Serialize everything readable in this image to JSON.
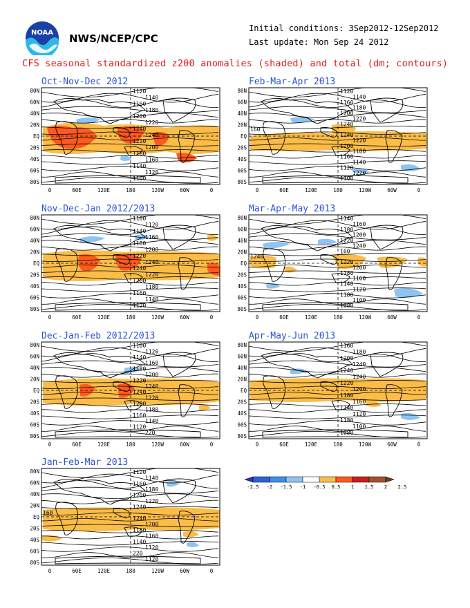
{
  "header": {
    "logo_text": "NOAA",
    "agency": "NWS/NCEP/CPC",
    "initial_conditions": "Initial conditions: 3Sep2012-12Sep2012",
    "last_update": "Last update: Mon Sep 24 2012",
    "title": "CFS seasonal standardized z200 anomalies (shaded) and total (dm; contours)"
  },
  "axes": {
    "lat_labels": [
      "80N",
      "60N",
      "40N",
      "20N",
      "EQ",
      "20S",
      "40S",
      "60S",
      "80S"
    ],
    "lon_labels": [
      "0",
      "60E",
      "120E",
      "180",
      "120W",
      "60W",
      "0"
    ]
  },
  "colorbar": {
    "ticks": [
      "-2.5",
      "-2",
      "-1.5",
      "-1",
      "-0.5",
      "0.5",
      "1",
      "1.5",
      "2",
      "2.5"
    ],
    "colors": [
      "#3a2fb3",
      "#2d5fd8",
      "#3d8fe6",
      "#8fc4f2",
      "#ffffff",
      "#fbbd48",
      "#ff5a1e",
      "#cc1d1d",
      "#a0522d",
      "#6b3a28"
    ]
  },
  "panels": [
    {
      "id": "p1",
      "title": "Oct-Nov-Dec 2012",
      "contours": [
        "1120",
        "1140",
        "1160",
        "1180",
        "1200",
        "1220",
        "1240",
        "1240",
        "1220",
        "1200",
        "1180",
        "1160",
        "1140",
        "1120",
        "1100"
      ]
    },
    {
      "id": "p2",
      "title": "Feb-Mar-Apr 2013",
      "contours": [
        "1120",
        "1140",
        "1160",
        "1180",
        "1200",
        "1220",
        "1240",
        "160",
        "1240",
        "1220",
        "1200",
        "1180",
        "1160",
        "1140",
        "1120",
        "1220",
        "1100"
      ]
    },
    {
      "id": "p3",
      "title": "Nov-Dec-Jan 2012/2013",
      "contours": [
        "1100",
        "1120",
        "1140",
        "1160",
        "1180",
        "1200",
        "1220",
        "1240",
        "1240",
        "1220",
        "1200",
        "1180",
        "1160",
        "1140",
        "1120"
      ]
    },
    {
      "id": "p4",
      "title": "Mar-Apr-May 2013",
      "contours": [
        "1140",
        "1160",
        "1180",
        "1200",
        "1220",
        "1240",
        "160",
        "1240",
        "1220",
        "1200",
        "1180",
        "1160",
        "1140",
        "1120",
        "1180",
        "1100",
        "1080"
      ]
    },
    {
      "id": "p5",
      "title": "Dec-Jan-Feb 2012/2013",
      "contours": [
        "1100",
        "1120",
        "1140",
        "1160",
        "1180",
        "1200",
        "1220",
        "1240",
        "1240",
        "1220",
        "1200",
        "1180",
        "1160",
        "1140",
        "1120",
        "220"
      ]
    },
    {
      "id": "p6",
      "title": "Apr-May-Jun 2013",
      "contours": [
        "1160",
        "1180",
        "1200",
        "1240",
        "1240",
        "1240",
        "1220",
        "1200",
        "1180",
        "1160",
        "1140",
        "1120",
        "1180",
        "1100",
        "1080"
      ]
    },
    {
      "id": "p7",
      "title": "Jan-Feb-Mar 2013",
      "contours": [
        "1120",
        "1140",
        "1160",
        "1180",
        "1200",
        "1220",
        "1240",
        "160",
        "1240",
        "1200",
        "1180",
        "1160",
        "1140",
        "1120",
        "220",
        "1120"
      ]
    }
  ],
  "chart_data": [
    {
      "type": "heatmap",
      "title": "Oct-Nov-Dec 2012",
      "anomaly_summary": "strong positive anomalies (1 to 1.5) across tropics from Africa to Pacific; weak negative near 20N"
    },
    {
      "type": "heatmap",
      "title": "Feb-Mar-Apr 2013",
      "anomaly_summary": "positive anomalies (0.5 to 1) in tropical band; negative patches in northern and southern midlatitudes"
    },
    {
      "type": "heatmap",
      "title": "Nov-Dec-Jan 2012/2013",
      "anomaly_summary": "strong positive anomalies (1 to 1.5) over Indian Ocean and western Pacific"
    },
    {
      "type": "heatmap",
      "title": "Mar-Apr-May 2013",
      "anomaly_summary": "scattered weak positive anomalies in tropics; negative patches in midlatitudes"
    },
    {
      "type": "heatmap",
      "title": "Dec-Jan-Feb 2012/2013",
      "anomaly_summary": "positive tropical band with cores of 1 over Africa and central Pacific"
    },
    {
      "type": "heatmap",
      "title": "Apr-May-Jun 2013",
      "anomaly_summary": "continuous positive tropical band (0.5 to 1); negative patch in South Atlantic"
    },
    {
      "type": "heatmap",
      "title": "Jan-Feb-Mar 2013",
      "anomaly_summary": "continuous positive tropical band (0.5 to 1); small negative patches"
    }
  ]
}
